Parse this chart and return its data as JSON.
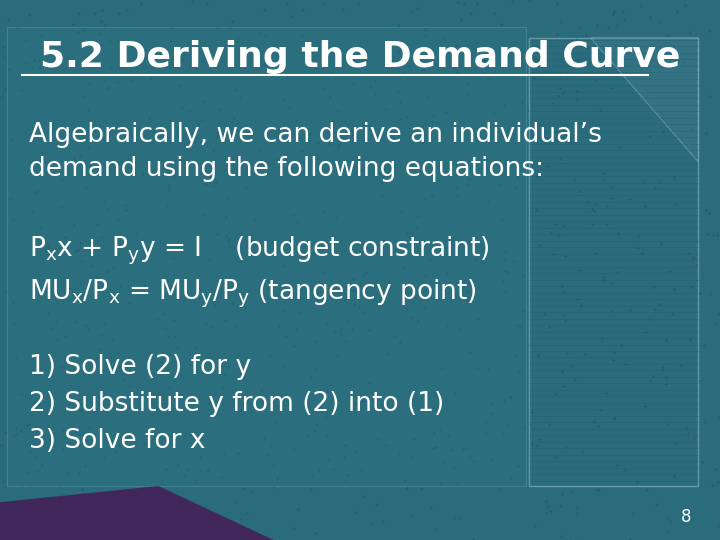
{
  "title": "5.2 Deriving the Demand Curve",
  "bg_color": "#2a6b7c",
  "text_color": "#ffffff",
  "title_fontsize": 26,
  "body_fontsize": 19,
  "eq_fontsize": 19,
  "steps_fontsize": 19,
  "page_number": "8",
  "body_text": "Algebraically, we can derive an individual’s\ndemand using the following equations:",
  "steps": "1) Solve (2) for y\n2) Substitute y from (2) into (1)\n3) Solve for x"
}
